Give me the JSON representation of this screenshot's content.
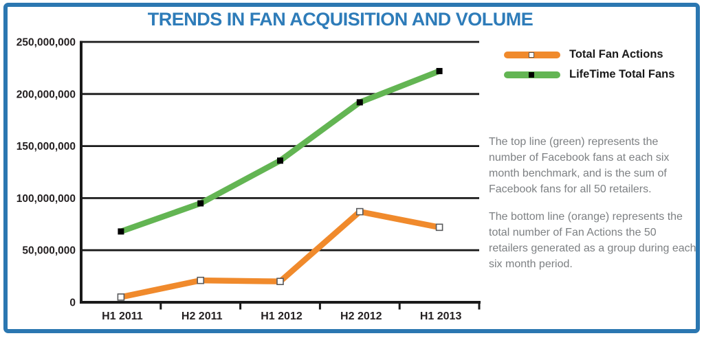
{
  "title": "TRENDS IN FAN ACQUISITION AND VOLUME",
  "colors": {
    "frame_blue": "#2B77B1",
    "title_blue": "#2E7CB9",
    "orange": "#F08A2C",
    "green": "#63B553",
    "axis_black": "#1a1a1a",
    "description_gray": "#7D8083"
  },
  "legend": [
    {
      "label": "Total Fan Actions",
      "color": "#F08A2C",
      "marker": "white-square"
    },
    {
      "label": "LifeTime Total Fans",
      "color": "#63B553",
      "marker": "black-square"
    }
  ],
  "description": {
    "para1": "The top line (green) represents the number of Facebook fans at each six month benchmark, and is the sum of Facebook fans for all 50 retailers.",
    "para2": "The bottom line (orange) represents the total number of Fan Actions the 50 retailers generated as a group during each six month period."
  },
  "chart_data": {
    "type": "line",
    "title": "TRENDS IN FAN ACQUISITION AND VOLUME",
    "categories": [
      "H1 2011",
      "H2 2011",
      "H1 2012",
      "H2 2012",
      "H1 2013"
    ],
    "series": [
      {
        "name": "Total Fan Actions",
        "color": "#F08A2C",
        "marker": "white-square",
        "values": [
          5000000,
          21000000,
          20000000,
          87000000,
          72000000
        ]
      },
      {
        "name": "LifeTime Total Fans",
        "color": "#63B553",
        "marker": "black-square",
        "values": [
          68000000,
          95000000,
          136000000,
          192000000,
          222000000
        ]
      }
    ],
    "xlabel": "",
    "ylabel": "",
    "ylim": [
      0,
      250000000
    ],
    "ytick_step": 50000000,
    "grid": "horizontal",
    "legend_position": "top-right"
  }
}
